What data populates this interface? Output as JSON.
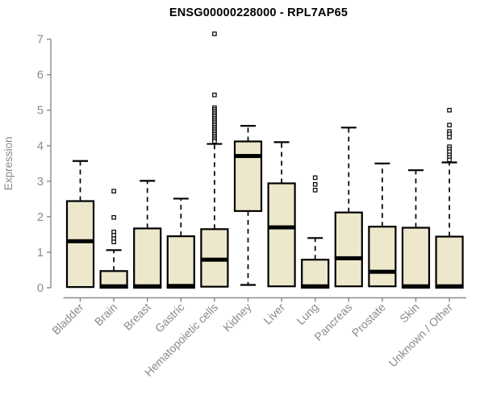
{
  "title": "ENSG00000228000 - RPL7AP65",
  "chart_data": {
    "type": "boxplot",
    "title": "ENSG00000228000 - RPL7AP65",
    "xlabel": "",
    "ylabel": "Expression",
    "ylim": [
      0,
      7
    ],
    "yticks": [
      0,
      1,
      2,
      3,
      4,
      5,
      6,
      7
    ],
    "grid": false,
    "legend": false,
    "categories": [
      "Bladder",
      "Brain",
      "Breast",
      "Gastric",
      "Hematopoietic cells",
      "Kidney",
      "Liver",
      "Lung",
      "Pancreas",
      "Prostate",
      "Skin",
      "Unknown / Other"
    ],
    "boxes": [
      {
        "category": "Bladder",
        "whisker_low": 0.02,
        "q1": 0.02,
        "median": 1.31,
        "q3": 2.44,
        "whisker_high": 3.57,
        "outliers": []
      },
      {
        "category": "Brain",
        "whisker_low": 0.0,
        "q1": 0.0,
        "median": 0.04,
        "q3": 0.47,
        "whisker_high": 1.06,
        "outliers": [
          2.72,
          1.98,
          1.57,
          1.48,
          1.38,
          1.29
        ]
      },
      {
        "category": "Breast",
        "whisker_low": 0.0,
        "q1": 0.0,
        "median": 0.04,
        "q3": 1.67,
        "whisker_high": 3.01,
        "outliers": []
      },
      {
        "category": "Gastric",
        "whisker_low": 0.0,
        "q1": 0.0,
        "median": 0.05,
        "q3": 1.45,
        "whisker_high": 2.51,
        "outliers": []
      },
      {
        "category": "Hematopoietic cells",
        "whisker_low": 0.03,
        "q1": 0.03,
        "median": 0.79,
        "q3": 1.65,
        "whisker_high": 4.05,
        "outliers": [
          7.15,
          5.43,
          5.07,
          5.02,
          4.97,
          4.92,
          4.87,
          4.82,
          4.77,
          4.72,
          4.67,
          4.62,
          4.57,
          4.52,
          4.47,
          4.42,
          4.37,
          4.32,
          4.27,
          4.22,
          4.17,
          4.12
        ]
      },
      {
        "category": "Kidney",
        "whisker_low": 0.08,
        "q1": 2.16,
        "median": 3.71,
        "q3": 4.12,
        "whisker_high": 4.56,
        "outliers": []
      },
      {
        "category": "Liver",
        "whisker_low": 0.04,
        "q1": 0.04,
        "median": 1.7,
        "q3": 2.94,
        "whisker_high": 4.1,
        "outliers": []
      },
      {
        "category": "Lung",
        "whisker_low": 0.0,
        "q1": 0.0,
        "median": 0.04,
        "q3": 0.79,
        "whisker_high": 1.4,
        "outliers": [
          3.1,
          2.91,
          2.75
        ]
      },
      {
        "category": "Pancreas",
        "whisker_low": 0.04,
        "q1": 0.04,
        "median": 0.83,
        "q3": 2.12,
        "whisker_high": 4.51,
        "outliers": []
      },
      {
        "category": "Prostate",
        "whisker_low": 0.04,
        "q1": 0.04,
        "median": 0.45,
        "q3": 1.72,
        "whisker_high": 3.5,
        "outliers": []
      },
      {
        "category": "Skin",
        "whisker_low": 0.0,
        "q1": 0.0,
        "median": 0.04,
        "q3": 1.69,
        "whisker_high": 3.31,
        "outliers": []
      },
      {
        "category": "Unknown / Other",
        "whisker_low": 0.0,
        "q1": 0.0,
        "median": 0.04,
        "q3": 1.44,
        "whisker_high": 3.53,
        "outliers": [
          5.0,
          4.58,
          4.4,
          4.33,
          4.24,
          3.97,
          3.9,
          3.83,
          3.74,
          3.67,
          3.6
        ]
      }
    ],
    "colors": {
      "box_fill": "#EDE8CB",
      "box_stroke": "#000000",
      "median_color": "#000000",
      "outlier_stroke": "#000000",
      "outlier_fill": "#FFFFFF",
      "axis_color": "#8A8A8A",
      "background": "#FFFFFF"
    }
  }
}
